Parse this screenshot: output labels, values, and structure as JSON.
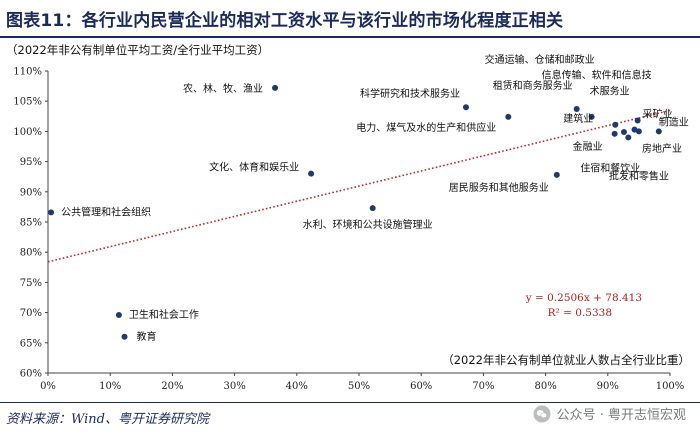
{
  "title": "图表11：各行业内民营企业的相对工资水平与该行业的市场化程度正相关",
  "source": "资料来源：Wind、粤开证券研究院",
  "watermark": "公众号 · 粤开志恒宏观",
  "colors": {
    "title": "#1b2a5a",
    "point": "#1f3a6e",
    "trend": "#c0282d",
    "equation": "#b02020",
    "axis": "#444444"
  },
  "icons": {
    "watermark": "wechat-icon"
  },
  "chart_data": {
    "type": "scatter",
    "ylabel": "（2022年非公有制单位平均工资/全行业平均工资）",
    "xlabel": "（2022年非公有制单位就业人数占全行业比重）",
    "xlim": [
      0,
      100
    ],
    "ylim": [
      60,
      110
    ],
    "xticks": [
      0,
      10,
      20,
      30,
      40,
      50,
      60,
      70,
      80,
      90,
      100
    ],
    "yticks": [
      60,
      65,
      70,
      75,
      80,
      85,
      90,
      95,
      100,
      105,
      110
    ],
    "tick_suffix": "%",
    "points": [
      {
        "name": "农、林、牧、渔业",
        "x": 36.5,
        "y": 107.2,
        "anchor": "end",
        "dx": -12,
        "dy": 4
      },
      {
        "name": "科学研究和技术服务业",
        "x": 67.2,
        "y": 104.0,
        "anchor": "end",
        "dx": -6,
        "dy": -10
      },
      {
        "name": "交通运输、仓储和邮政业",
        "x": 87.4,
        "y": 102.4,
        "anchor": "end",
        "dx": 3,
        "dy": -54
      },
      {
        "name": "租赁和商务服务业",
        "x": 85.0,
        "y": 103.7,
        "anchor": "end",
        "dx": -4,
        "dy": -20
      },
      {
        "name": "信息传输、软件和信息技",
        "x": 94.8,
        "y": 101.8,
        "anchor": "end",
        "dx": 14,
        "dy": -42
      },
      {
        "name": "术服务业",
        "x": 94.8,
        "y": 101.8,
        "anchor": "end",
        "dx": -8,
        "dy": -26
      },
      {
        "name": "电力、煤气及水的生产和供应业",
        "x": 74.0,
        "y": 102.4,
        "anchor": "end",
        "dx": -12,
        "dy": 14
      },
      {
        "name": "建筑业",
        "x": 91.2,
        "y": 101.1,
        "anchor": "end",
        "dx": -22,
        "dy": -3
      },
      {
        "name": "采矿业",
        "x": 94.3,
        "y": 100.3,
        "anchor": "start",
        "dx": 8,
        "dy": -12
      },
      {
        "name": "制造业",
        "x": 98.2,
        "y": 100.0,
        "anchor": "start",
        "dx": 0,
        "dy": -6
      },
      {
        "name": "金融业",
        "x": 91.1,
        "y": 99.6,
        "anchor": "end",
        "dx": -12,
        "dy": 16
      },
      {
        "name": "房地产业",
        "x": 92.6,
        "y": 99.9,
        "anchor": "start",
        "dx": 18,
        "dy": 20
      },
      {
        "name": "住宿和餐饮业",
        "x": 93.3,
        "y": 99.0,
        "anchor": "end",
        "dx": 12,
        "dy": 34
      },
      {
        "name": "批发和零售业",
        "x": 95.0,
        "y": 100.0,
        "anchor": "start",
        "dx": -30,
        "dy": 48
      },
      {
        "name": "文化、体育和娱乐业",
        "x": 42.3,
        "y": 93.0,
        "anchor": "end",
        "dx": -12,
        "dy": -3
      },
      {
        "name": "居民服务和其他服务业",
        "x": 81.8,
        "y": 92.8,
        "anchor": "end",
        "dx": -8,
        "dy": 16
      },
      {
        "name": "水利、环境和公共设施管理业",
        "x": 52.2,
        "y": 87.3,
        "anchor": "start",
        "dx": -70,
        "dy": 20
      },
      {
        "name": "公共管理和社会组织",
        "x": 0.5,
        "y": 86.6,
        "anchor": "start",
        "dx": 10,
        "dy": 3
      },
      {
        "name": "卫生和社会工作",
        "x": 11.4,
        "y": 69.6,
        "anchor": "start",
        "dx": 10,
        "dy": 3
      },
      {
        "name": "教育",
        "x": 12.3,
        "y": 66.0,
        "anchor": "start",
        "dx": 12,
        "dy": 3
      }
    ],
    "trendline": {
      "slope": 0.2506,
      "intercept": 78.413,
      "x_range": [
        0,
        100
      ],
      "style": "dotted"
    },
    "equation_text": "y = 0.2506x + 78.413",
    "r2_text": "R² = 0.5338",
    "grid": false
  }
}
